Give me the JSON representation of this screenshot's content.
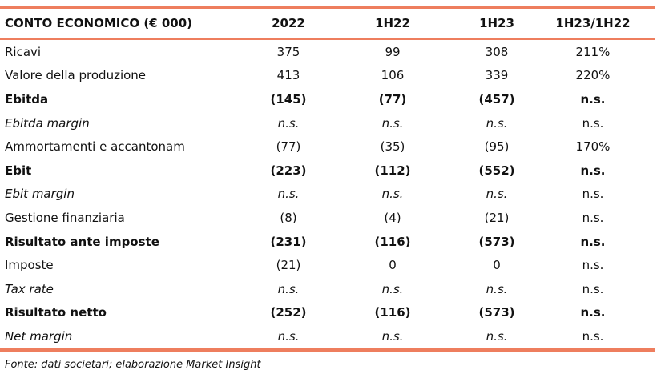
{
  "table": {
    "header": [
      "CONTO ECONOMICO (€ 000)",
      "2022",
      "1H22",
      "1H23",
      "1H23/1H22"
    ],
    "rows": [
      [
        "Ricavi",
        "375",
        "99",
        "308",
        "211%"
      ],
      [
        "Valore della produzione",
        "413",
        "106",
        "339",
        "220%"
      ],
      [
        "Ebitda",
        "(145)",
        "(77)",
        "(457)",
        "n.s."
      ],
      [
        "Ebitda margin",
        "n.s.",
        "n.s.",
        "n.s.",
        "n.s."
      ],
      [
        "Ammortamenti e accantonam",
        "(77)",
        "(35)",
        "(95)",
        "170%"
      ],
      [
        "Ebit",
        "(223)",
        "(112)",
        "(552)",
        "n.s."
      ],
      [
        "Ebit margin",
        "n.s.",
        "n.s.",
        "n.s.",
        "n.s."
      ],
      [
        "Gestione finanziaria",
        "(8)",
        "(4)",
        "(21)",
        "n.s."
      ],
      [
        "Risultato ante imposte",
        "(231)",
        "(116)",
        "(573)",
        "n.s."
      ],
      [
        "Imposte",
        "(21)",
        "0",
        "0",
        "n.s."
      ],
      [
        "Tax rate",
        "n.s.",
        "n.s.",
        "n.s.",
        "n.s."
      ],
      [
        "Risultato netto",
        "(252)",
        "(116)",
        "(573)",
        "n.s."
      ],
      [
        "Net margin",
        "n.s.",
        "n.s.",
        "n.s.",
        "n.s."
      ]
    ]
  },
  "footer": "Fonte: dati societari; elaborazione Market Insight"
}
